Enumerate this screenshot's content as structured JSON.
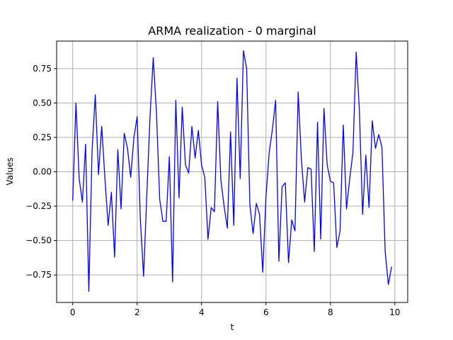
{
  "chart_data": {
    "type": "line",
    "title": "ARMA realization - 0 marginal",
    "xlabel": "t",
    "ylabel": "Values",
    "xlim": [
      -0.5,
      10.4
    ],
    "ylim": [
      -0.95,
      0.95
    ],
    "xticks": [
      0,
      2,
      4,
      6,
      8,
      10
    ],
    "xtick_labels": [
      "0",
      "2",
      "4",
      "6",
      "8",
      "10"
    ],
    "yticks": [
      -0.75,
      -0.5,
      -0.25,
      0.0,
      0.25,
      0.5,
      0.75
    ],
    "ytick_labels": [
      "−0.75",
      "−0.50",
      "−0.25",
      "0.00",
      "0.25",
      "0.50",
      "0.75"
    ],
    "grid": true,
    "legend": "none",
    "color": "#0000ff",
    "x_start": 0.0,
    "x_step": 0.1,
    "series": [
      {
        "values": [
          -0.21,
          0.5,
          -0.05,
          -0.22,
          0.2,
          -0.87,
          0.15,
          0.56,
          -0.02,
          0.33,
          -0.05,
          -0.39,
          -0.15,
          -0.62,
          0.16,
          -0.27,
          0.28,
          0.17,
          -0.04,
          0.25,
          0.4,
          -0.35,
          -0.76,
          -0.17,
          0.4,
          0.83,
          0.43,
          -0.2,
          -0.36,
          -0.36,
          0.11,
          -0.8,
          0.52,
          -0.19,
          0.47,
          0.05,
          -0.01,
          0.33,
          0.1,
          0.3,
          0.05,
          -0.04,
          -0.49,
          -0.26,
          -0.29,
          0.51,
          -0.06,
          -0.25,
          -0.41,
          0.29,
          -0.39,
          0.68,
          -0.05,
          0.88,
          0.75,
          -0.24,
          -0.45,
          -0.23,
          -0.31,
          -0.73,
          -0.18,
          0.14,
          0.31,
          0.52,
          -0.65,
          -0.11,
          -0.08,
          -0.66,
          -0.35,
          -0.43,
          0.58,
          0.09,
          -0.22,
          0.03,
          0.02,
          -0.58,
          0.36,
          -0.49,
          0.46,
          0.05,
          -0.07,
          -0.08,
          -0.55,
          -0.43,
          0.34,
          -0.27,
          -0.05,
          0.14,
          0.87,
          0.45,
          -0.31,
          0.12,
          -0.26,
          0.37,
          0.17,
          0.27,
          0.18,
          -0.58,
          -0.82,
          -0.69
        ]
      }
    ]
  }
}
